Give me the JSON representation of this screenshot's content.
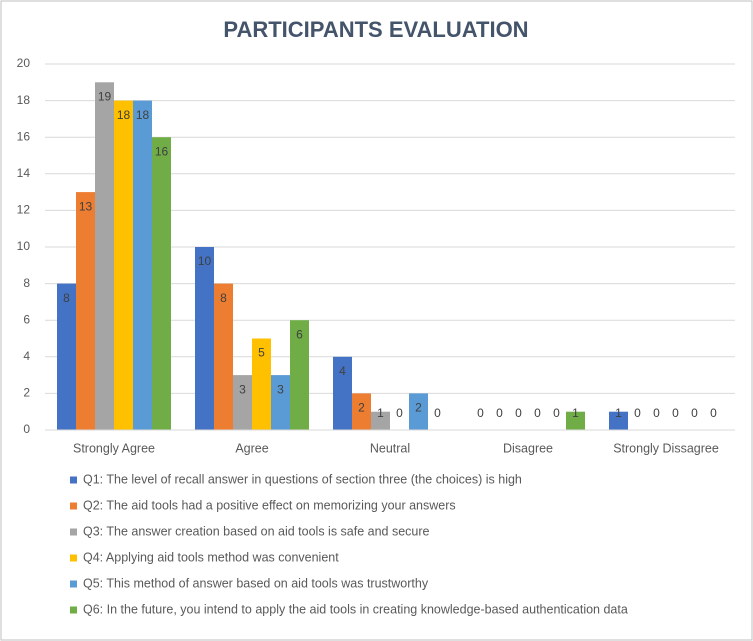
{
  "chart_data": {
    "type": "bar",
    "title": "PARTICIPANTS EVALUATION",
    "categories": [
      "Strongly Agree",
      "Agree",
      "Neutral",
      "Disagree",
      "Strongly Dissagree"
    ],
    "series": [
      {
        "name": "Q1: The level of recall answer in questions of section three (the choices) is high",
        "color": "#4472c4",
        "values": [
          8,
          10,
          4,
          0,
          1
        ]
      },
      {
        "name": "Q2: The aid tools had a positive effect on memorizing your answers",
        "color": "#ed7d31",
        "values": [
          13,
          8,
          2,
          0,
          0
        ]
      },
      {
        "name": "Q3: The answer creation based on aid tools is safe and secure",
        "color": "#a5a5a5",
        "values": [
          19,
          3,
          1,
          0,
          0
        ]
      },
      {
        "name": "Q4: Applying aid tools method was convenient",
        "color": "#ffc000",
        "values": [
          18,
          5,
          0,
          0,
          0
        ]
      },
      {
        "name": "Q5: This method of answer based on aid tools was trustworthy",
        "color": "#5b9bd5",
        "values": [
          18,
          3,
          2,
          0,
          0
        ]
      },
      {
        "name": "Q6: In the future, you intend to apply the aid tools in creating knowledge-based authentication data",
        "color": "#70ad47",
        "values": [
          16,
          6,
          0,
          1,
          0
        ]
      }
    ],
    "ylim": [
      0,
      20
    ],
    "yticks": [
      0,
      2,
      4,
      6,
      8,
      10,
      12,
      14,
      16,
      18,
      20
    ],
    "grid": true,
    "legend": "bottom"
  }
}
